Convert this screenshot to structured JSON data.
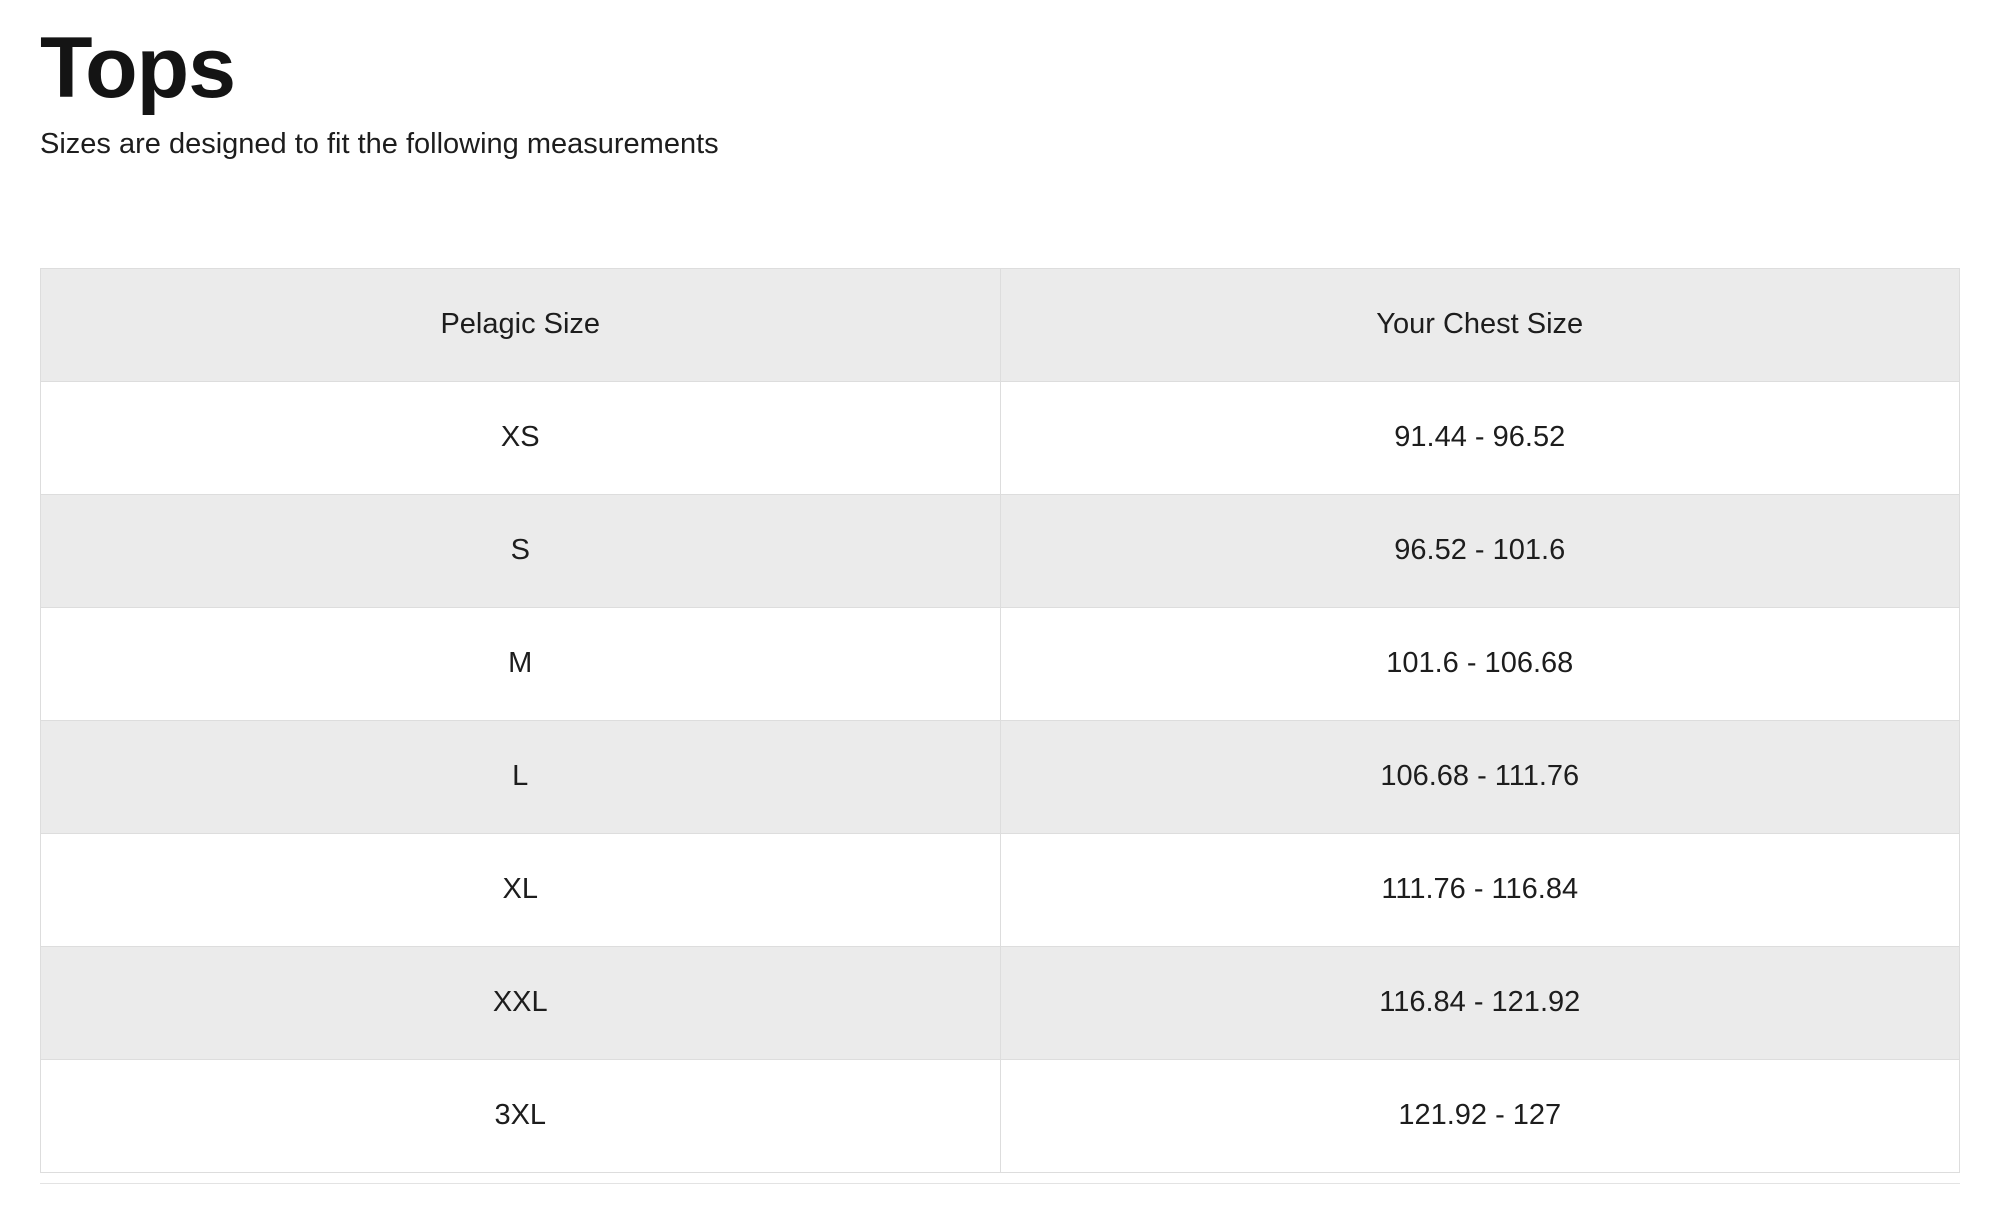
{
  "page": {
    "title": "Tops",
    "subtitle": "Sizes are designed to fit the following measurements"
  },
  "table": {
    "columns": [
      "Pelagic Size",
      "Your Chest Size"
    ],
    "rows": [
      {
        "size": "XS",
        "chest": "91.44 - 96.52"
      },
      {
        "size": "S",
        "chest": "96.52 - 101.6"
      },
      {
        "size": "M",
        "chest": "101.6 - 106.68"
      },
      {
        "size": "L",
        "chest": "106.68 - 111.76"
      },
      {
        "size": "XL",
        "chest": "111.76 - 116.84"
      },
      {
        "size": "XXL",
        "chest": "116.84 - 121.92"
      },
      {
        "size": "3XL",
        "chest": "121.92 - 127"
      }
    ]
  },
  "colors": {
    "stripe_gray": "#ebebeb",
    "border_gray": "#dddddd",
    "text": "#1d1d1d",
    "background": "#ffffff"
  }
}
